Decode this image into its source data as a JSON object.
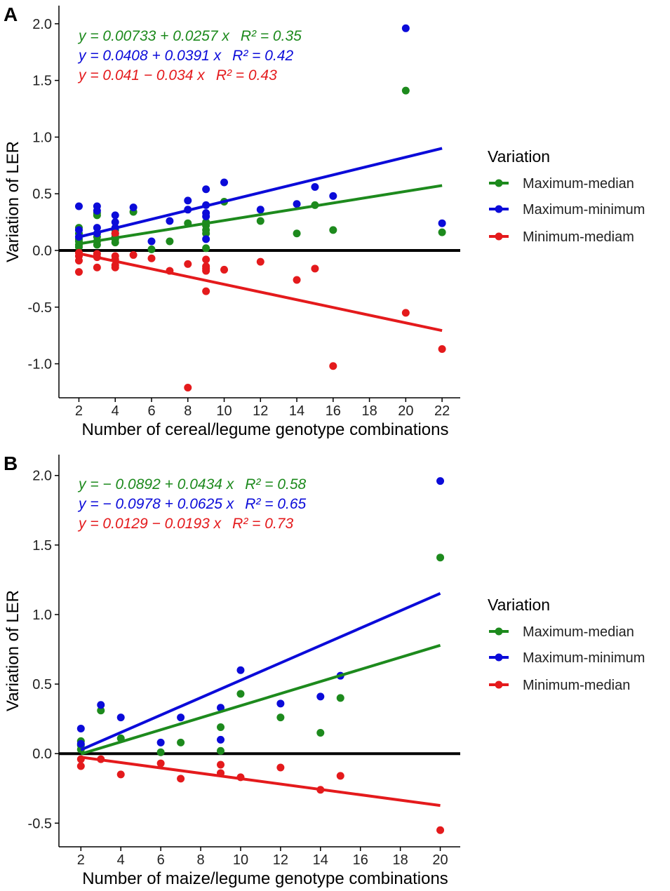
{
  "colors": {
    "green": "#1d8a1d",
    "blue": "#0b0bd9",
    "red": "#e41a1c",
    "axis": "#000000"
  },
  "chart_data": [
    {
      "type": "scatter",
      "panel_label": "A",
      "xlabel": "Number of cereal/legume genotype combinations",
      "ylabel": "Variation of LER",
      "xlim": [
        0.9,
        23
      ],
      "ylim": [
        -1.3,
        2.16
      ],
      "xticks": [
        2,
        4,
        6,
        8,
        10,
        12,
        14,
        16,
        18,
        20,
        22
      ],
      "yticks": [
        -1.0,
        -0.5,
        0.0,
        0.5,
        1.0,
        1.5,
        2.0
      ],
      "ytick_labels": [
        "-1.0",
        "-0.5",
        "0.0",
        "0.5",
        "1.0",
        "1.5",
        "2.0"
      ],
      "zero_line": true,
      "legend_title": "Variation",
      "legend_position": "right",
      "series": [
        {
          "name": "Maximum-median",
          "color": "green",
          "equation": "y = 0.00733 + 0.0257 x",
          "r2_label": "R² = 0.35",
          "intercept": 0.00733,
          "slope": 0.0257,
          "fit_range": [
            2,
            22
          ],
          "points": [
            [
              2,
              0.2
            ],
            [
              2,
              0.15
            ],
            [
              2,
              0.1
            ],
            [
              2,
              0.08
            ],
            [
              2,
              0.05
            ],
            [
              2,
              0.03
            ],
            [
              3,
              0.33
            ],
            [
              3,
              0.31
            ],
            [
              3,
              0.12
            ],
            [
              3,
              0.08
            ],
            [
              3,
              0.05
            ],
            [
              4,
              0.18
            ],
            [
              4,
              0.12
            ],
            [
              4,
              0.1
            ],
            [
              4,
              0.07
            ],
            [
              5,
              0.34
            ],
            [
              6,
              0.01
            ],
            [
              7,
              0.08
            ],
            [
              8,
              0.24
            ],
            [
              9,
              0.25
            ],
            [
              9,
              0.22
            ],
            [
              9,
              0.18
            ],
            [
              9,
              0.15
            ],
            [
              9,
              0.02
            ],
            [
              10,
              0.43
            ],
            [
              12,
              0.26
            ],
            [
              14,
              0.15
            ],
            [
              15,
              0.4
            ],
            [
              16,
              0.18
            ],
            [
              20,
              1.41
            ],
            [
              22,
              0.16
            ]
          ]
        },
        {
          "name": "Maximum-minimum",
          "color": "blue",
          "equation": "y = 0.0408 + 0.0391 x",
          "r2_label": "R² = 0.42",
          "intercept": 0.0408,
          "slope": 0.0391,
          "fit_range": [
            2,
            22
          ],
          "points": [
            [
              2,
              0.39
            ],
            [
              2,
              0.18
            ],
            [
              2,
              0.12
            ],
            [
              3,
              0.39
            ],
            [
              3,
              0.35
            ],
            [
              3,
              0.2
            ],
            [
              3,
              0.15
            ],
            [
              4,
              0.31
            ],
            [
              4,
              0.25
            ],
            [
              4,
              0.2
            ],
            [
              4,
              0.15
            ],
            [
              5,
              0.38
            ],
            [
              6,
              0.08
            ],
            [
              7,
              0.26
            ],
            [
              8,
              0.44
            ],
            [
              8,
              0.36
            ],
            [
              9,
              0.54
            ],
            [
              9,
              0.4
            ],
            [
              9,
              0.33
            ],
            [
              9,
              0.3
            ],
            [
              9,
              0.1
            ],
            [
              10,
              0.6
            ],
            [
              12,
              0.36
            ],
            [
              14,
              0.41
            ],
            [
              15,
              0.56
            ],
            [
              16,
              0.48
            ],
            [
              20,
              1.96
            ],
            [
              22,
              0.24
            ]
          ]
        },
        {
          "name": "Minimum-mediam",
          "color": "red",
          "equation": "y = 0.041 − 0.034 x",
          "r2_label": "R² = 0.43",
          "intercept": 0.041,
          "slope": -0.034,
          "fit_range": [
            2,
            22
          ],
          "points": [
            [
              2,
              -0.02
            ],
            [
              2,
              -0.05
            ],
            [
              2,
              -0.09
            ],
            [
              2,
              -0.19
            ],
            [
              3,
              -0.03
            ],
            [
              3,
              -0.06
            ],
            [
              3,
              -0.15
            ],
            [
              4,
              0.15
            ],
            [
              4,
              -0.05
            ],
            [
              4,
              -0.08
            ],
            [
              4,
              -0.13
            ],
            [
              4,
              -0.15
            ],
            [
              5,
              -0.04
            ],
            [
              6,
              -0.07
            ],
            [
              7,
              -0.18
            ],
            [
              8,
              -0.12
            ],
            [
              8,
              -1.21
            ],
            [
              9,
              -0.08
            ],
            [
              9,
              -0.14
            ],
            [
              9,
              -0.16
            ],
            [
              9,
              -0.18
            ],
            [
              9,
              -0.36
            ],
            [
              10,
              -0.17
            ],
            [
              12,
              -0.1
            ],
            [
              14,
              -0.26
            ],
            [
              15,
              -0.16
            ],
            [
              16,
              -1.02
            ],
            [
              20,
              -0.55
            ],
            [
              22,
              -0.87
            ]
          ]
        }
      ]
    },
    {
      "type": "scatter",
      "panel_label": "B",
      "xlabel": "Number of maize/legume genotype combinations",
      "ylabel": "Variation of LER",
      "xlim": [
        0.9,
        21
      ],
      "ylim": [
        -0.67,
        2.15
      ],
      "xticks": [
        2,
        4,
        6,
        8,
        10,
        12,
        14,
        16,
        18,
        20
      ],
      "yticks": [
        -0.5,
        0.0,
        0.5,
        1.0,
        1.5,
        2.0
      ],
      "ytick_labels": [
        "-0.5",
        "0.0",
        "0.5",
        "1.0",
        "1.5",
        "2.0"
      ],
      "zero_line": true,
      "legend_title": "Variation",
      "legend_position": "right",
      "series": [
        {
          "name": "Maximum-median",
          "color": "green",
          "equation": "y = − 0.0892 + 0.0434 x",
          "r2_label": "R² = 0.58",
          "intercept": -0.0892,
          "slope": 0.0434,
          "fit_range": [
            2,
            20
          ],
          "points": [
            [
              2,
              0.09
            ],
            [
              2,
              0.06
            ],
            [
              2,
              0.03
            ],
            [
              3,
              0.31
            ],
            [
              4,
              0.11
            ],
            [
              6,
              0.01
            ],
            [
              7,
              0.08
            ],
            [
              9,
              0.19
            ],
            [
              9,
              0.02
            ],
            [
              10,
              0.43
            ],
            [
              12,
              0.26
            ],
            [
              14,
              0.15
            ],
            [
              15,
              0.4
            ],
            [
              20,
              1.41
            ]
          ]
        },
        {
          "name": "Maximum-minimum",
          "color": "blue",
          "equation": "y = − 0.0978 + 0.0625 x",
          "r2_label": "R² = 0.65",
          "intercept": -0.0978,
          "slope": 0.0625,
          "fit_range": [
            2,
            20
          ],
          "points": [
            [
              2,
              0.18
            ],
            [
              2,
              0.07
            ],
            [
              3,
              0.35
            ],
            [
              4,
              0.26
            ],
            [
              6,
              0.08
            ],
            [
              7,
              0.26
            ],
            [
              9,
              0.33
            ],
            [
              9,
              0.1
            ],
            [
              10,
              0.6
            ],
            [
              12,
              0.36
            ],
            [
              14,
              0.41
            ],
            [
              15,
              0.56
            ],
            [
              20,
              1.96
            ]
          ]
        },
        {
          "name": "Minimum-median",
          "color": "red",
          "equation": "y = 0.0129 − 0.0193 x",
          "r2_label": "R² = 0.73",
          "intercept": 0.0129,
          "slope": -0.0193,
          "fit_range": [
            2,
            20
          ],
          "points": [
            [
              2,
              -0.04
            ],
            [
              2,
              -0.09
            ],
            [
              3,
              -0.04
            ],
            [
              4,
              -0.15
            ],
            [
              6,
              -0.07
            ],
            [
              7,
              -0.18
            ],
            [
              9,
              -0.08
            ],
            [
              9,
              -0.14
            ],
            [
              10,
              -0.17
            ],
            [
              12,
              -0.1
            ],
            [
              14,
              -0.26
            ],
            [
              15,
              -0.16
            ],
            [
              20,
              -0.55
            ]
          ]
        }
      ]
    }
  ]
}
